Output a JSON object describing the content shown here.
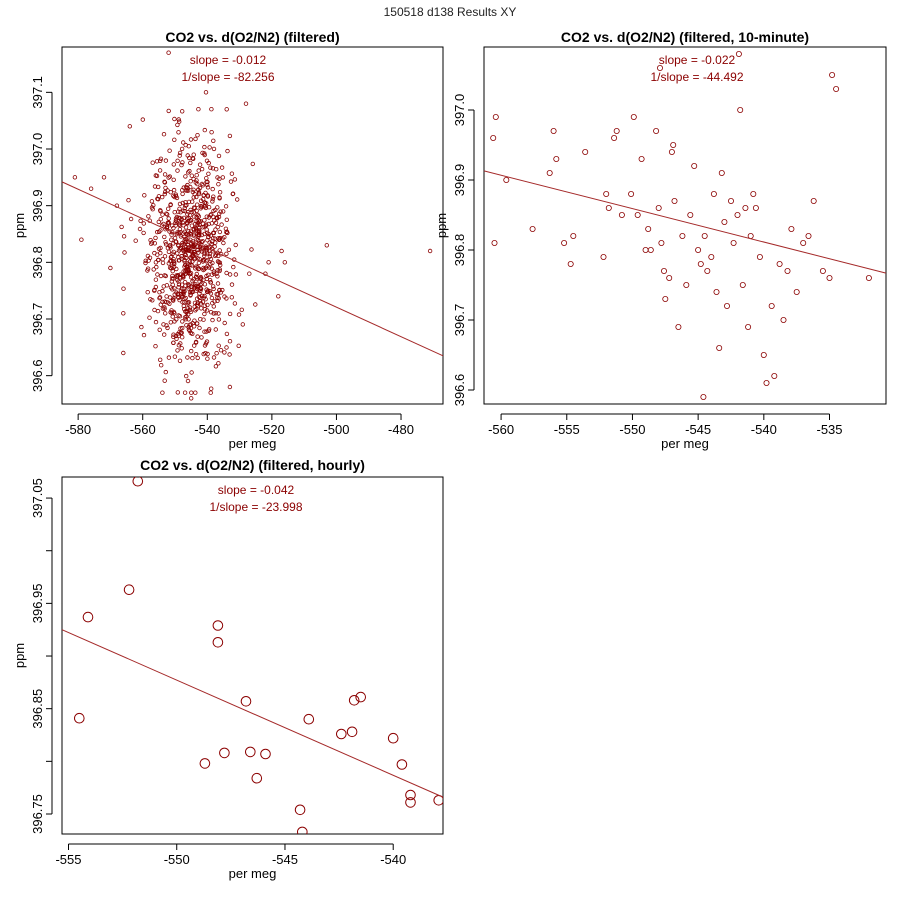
{
  "page": {
    "suptitle": "150518   d138   Results XY"
  },
  "colors": {
    "point": "#8b0000",
    "fit_line": "#a52a2a",
    "annotation": "#8b0000"
  },
  "chart_data": [
    {
      "type": "scatter",
      "title": "CO2 vs. d(O2/N2) (filtered)",
      "xlabel": "per meg",
      "ylabel": "ppm",
      "xlim": [
        -585,
        -467
      ],
      "ylim": [
        396.55,
        397.18
      ],
      "xticks": [
        -580,
        -560,
        -540,
        -520,
        -500,
        -480
      ],
      "yticks": [
        396.6,
        396.7,
        396.8,
        396.9,
        397.0,
        397.1
      ],
      "marker_size": "small",
      "annotations": [
        "slope = -0.012",
        "1/slope = -82.256"
      ],
      "fit_line": {
        "x": [
          -585,
          -467
        ],
        "y": [
          396.942,
          396.635
        ]
      },
      "cloud": {
        "description": "dense point cloud centered near x=-545, y=396.82",
        "count": 900,
        "x_center": -545,
        "x_sd": 6.5,
        "y_center": 396.82,
        "y_sd": 0.095
      },
      "points": [
        {
          "x": -581,
          "y": 396.95
        },
        {
          "x": -579,
          "y": 396.84
        },
        {
          "x": -576,
          "y": 396.93
        },
        {
          "x": -572,
          "y": 396.95
        },
        {
          "x": -570,
          "y": 396.79
        },
        {
          "x": -568,
          "y": 396.9
        },
        {
          "x": -566,
          "y": 396.71
        },
        {
          "x": -566,
          "y": 396.64
        },
        {
          "x": -564,
          "y": 397.04
        },
        {
          "x": -552,
          "y": 397.17
        },
        {
          "x": -534,
          "y": 397.07
        },
        {
          "x": -528,
          "y": 397.08
        },
        {
          "x": -527,
          "y": 396.78
        },
        {
          "x": -522,
          "y": 396.78
        },
        {
          "x": -521,
          "y": 396.8
        },
        {
          "x": -518,
          "y": 396.74
        },
        {
          "x": -517,
          "y": 396.82
        },
        {
          "x": -516,
          "y": 396.8
        },
        {
          "x": -503,
          "y": 396.83
        },
        {
          "x": -471,
          "y": 396.82
        },
        {
          "x": -545,
          "y": 396.56
        },
        {
          "x": -533,
          "y": 396.58
        }
      ]
    },
    {
      "type": "scatter",
      "title": "CO2 vs. d(O2/N2) (filtered, 10-minute)",
      "xlabel": "per meg",
      "ylabel": "ppm",
      "xlim": [
        -561.3,
        -530.7
      ],
      "ylim": [
        396.58,
        397.09
      ],
      "xticks": [
        -560,
        -555,
        -550,
        -545,
        -540,
        -535
      ],
      "yticks": [
        396.6,
        396.7,
        396.8,
        396.9,
        397.0
      ],
      "marker_size": "medium",
      "annotations": [
        "slope = -0.022",
        "1/slope = -44.492"
      ],
      "fit_line": {
        "x": [
          -561.3,
          -530.7
        ],
        "y": [
          396.913,
          396.767
        ]
      },
      "points": [
        {
          "x": -560.6,
          "y": 396.96
        },
        {
          "x": -560.4,
          "y": 396.99
        },
        {
          "x": -560.5,
          "y": 396.81
        },
        {
          "x": -559.6,
          "y": 396.9
        },
        {
          "x": -557.6,
          "y": 396.83
        },
        {
          "x": -556.3,
          "y": 396.91
        },
        {
          "x": -556.0,
          "y": 396.97
        },
        {
          "x": -555.8,
          "y": 396.93
        },
        {
          "x": -555.2,
          "y": 396.81
        },
        {
          "x": -554.7,
          "y": 396.78
        },
        {
          "x": -554.5,
          "y": 396.82
        },
        {
          "x": -553.6,
          "y": 396.94
        },
        {
          "x": -552.2,
          "y": 396.79
        },
        {
          "x": -552.0,
          "y": 396.88
        },
        {
          "x": -551.8,
          "y": 396.86
        },
        {
          "x": -551.4,
          "y": 396.96
        },
        {
          "x": -551.2,
          "y": 396.97
        },
        {
          "x": -550.8,
          "y": 396.85
        },
        {
          "x": -550.1,
          "y": 396.88
        },
        {
          "x": -549.9,
          "y": 396.99
        },
        {
          "x": -549.6,
          "y": 396.85
        },
        {
          "x": -549.3,
          "y": 396.93
        },
        {
          "x": -549.0,
          "y": 396.8
        },
        {
          "x": -548.8,
          "y": 396.83
        },
        {
          "x": -548.6,
          "y": 396.8
        },
        {
          "x": -548.2,
          "y": 396.97
        },
        {
          "x": -548.0,
          "y": 396.86
        },
        {
          "x": -547.8,
          "y": 396.81
        },
        {
          "x": -547.6,
          "y": 396.77
        },
        {
          "x": -547.5,
          "y": 396.73
        },
        {
          "x": -547.2,
          "y": 396.76
        },
        {
          "x": -547.0,
          "y": 396.94
        },
        {
          "x": -546.8,
          "y": 396.87
        },
        {
          "x": -546.5,
          "y": 396.69
        },
        {
          "x": -546.2,
          "y": 396.82
        },
        {
          "x": -545.9,
          "y": 396.75
        },
        {
          "x": -545.6,
          "y": 396.85
        },
        {
          "x": -545.3,
          "y": 396.92
        },
        {
          "x": -545.0,
          "y": 396.8
        },
        {
          "x": -544.8,
          "y": 396.78
        },
        {
          "x": -544.6,
          "y": 396.59
        },
        {
          "x": -544.5,
          "y": 396.82
        },
        {
          "x": -544.3,
          "y": 396.77
        },
        {
          "x": -544.0,
          "y": 396.79
        },
        {
          "x": -543.8,
          "y": 396.88
        },
        {
          "x": -543.6,
          "y": 396.74
        },
        {
          "x": -543.4,
          "y": 396.66
        },
        {
          "x": -543.2,
          "y": 396.91
        },
        {
          "x": -543.0,
          "y": 396.84
        },
        {
          "x": -542.8,
          "y": 396.72
        },
        {
          "x": -542.5,
          "y": 396.87
        },
        {
          "x": -542.3,
          "y": 396.81
        },
        {
          "x": -542.0,
          "y": 396.85
        },
        {
          "x": -541.8,
          "y": 397.0
        },
        {
          "x": -541.6,
          "y": 396.75
        },
        {
          "x": -541.4,
          "y": 396.86
        },
        {
          "x": -541.2,
          "y": 396.69
        },
        {
          "x": -541.0,
          "y": 396.82
        },
        {
          "x": -540.8,
          "y": 396.88
        },
        {
          "x": -540.6,
          "y": 396.86
        },
        {
          "x": -540.3,
          "y": 396.79
        },
        {
          "x": -540.0,
          "y": 396.65
        },
        {
          "x": -539.8,
          "y": 396.61
        },
        {
          "x": -539.4,
          "y": 396.72
        },
        {
          "x": -539.2,
          "y": 396.62
        },
        {
          "x": -538.8,
          "y": 396.78
        },
        {
          "x": -538.5,
          "y": 396.7
        },
        {
          "x": -538.2,
          "y": 396.77
        },
        {
          "x": -537.9,
          "y": 396.83
        },
        {
          "x": -537.5,
          "y": 396.74
        },
        {
          "x": -537.0,
          "y": 396.81
        },
        {
          "x": -536.6,
          "y": 396.82
        },
        {
          "x": -536.2,
          "y": 396.87
        },
        {
          "x": -535.5,
          "y": 396.77
        },
        {
          "x": -535.0,
          "y": 396.76
        },
        {
          "x": -534.8,
          "y": 397.05
        },
        {
          "x": -534.5,
          "y": 397.03
        },
        {
          "x": -532.0,
          "y": 396.76
        },
        {
          "x": -541.9,
          "y": 397.08
        },
        {
          "x": -547.9,
          "y": 397.06
        },
        {
          "x": -546.9,
          "y": 396.95
        }
      ]
    },
    {
      "type": "scatter",
      "title": "CO2 vs. d(O2/N2) (filtered, hourly)",
      "xlabel": "per meg",
      "ylabel": "ppm",
      "xlim": [
        -555.3,
        -537.7
      ],
      "ylim": [
        396.731,
        397.07
      ],
      "xticks": [
        -555,
        -550,
        -545,
        -540
      ],
      "yticks": [
        396.75,
        396.8,
        396.85,
        396.9,
        396.95,
        397.0,
        397.05
      ],
      "ytick_labels": [
        "396.75",
        "",
        "396.85",
        "",
        "396.95",
        "",
        "397.05"
      ],
      "marker_size": "large",
      "annotations": [
        "slope = -0.042",
        "1/slope = -23.998"
      ],
      "fit_line": {
        "x": [
          -555.3,
          -537.7
        ],
        "y": [
          396.925,
          396.766
        ]
      },
      "points": [
        {
          "x": -554.5,
          "y": 396.841
        },
        {
          "x": -554.1,
          "y": 396.937
        },
        {
          "x": -552.2,
          "y": 396.963
        },
        {
          "x": -551.8,
          "y": 397.066
        },
        {
          "x": -548.7,
          "y": 396.798
        },
        {
          "x": -548.1,
          "y": 396.929
        },
        {
          "x": -548.1,
          "y": 396.913
        },
        {
          "x": -547.8,
          "y": 396.808
        },
        {
          "x": -546.8,
          "y": 396.857
        },
        {
          "x": -546.6,
          "y": 396.809
        },
        {
          "x": -546.3,
          "y": 396.784
        },
        {
          "x": -545.9,
          "y": 396.807
        },
        {
          "x": -544.3,
          "y": 396.754
        },
        {
          "x": -544.2,
          "y": 396.733
        },
        {
          "x": -543.9,
          "y": 396.84
        },
        {
          "x": -542.4,
          "y": 396.826
        },
        {
          "x": -541.9,
          "y": 396.828
        },
        {
          "x": -541.8,
          "y": 396.858
        },
        {
          "x": -541.5,
          "y": 396.861
        },
        {
          "x": -540.0,
          "y": 396.822
        },
        {
          "x": -539.6,
          "y": 396.797
        },
        {
          "x": -539.2,
          "y": 396.768
        },
        {
          "x": -539.2,
          "y": 396.761
        },
        {
          "x": -537.9,
          "y": 396.763
        }
      ]
    }
  ]
}
